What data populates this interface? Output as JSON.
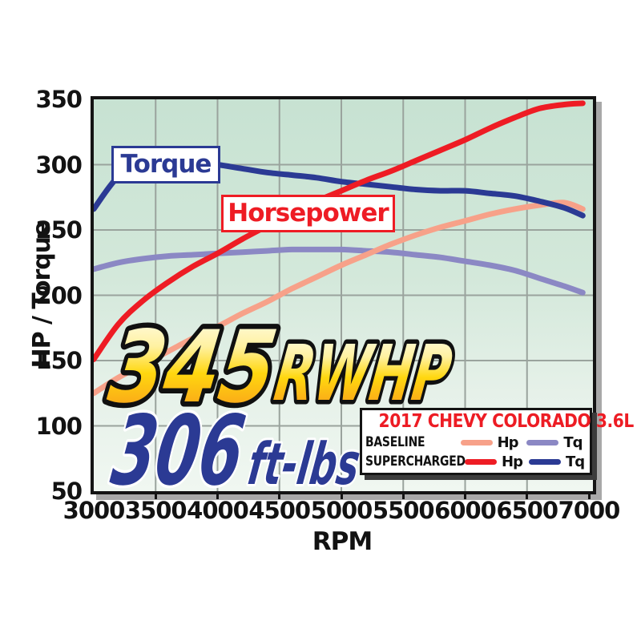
{
  "annotations": {
    "torque_label": "Torque",
    "horsepower_label": "Horsepower",
    "headline_value": "345",
    "headline_unit": "RWHP",
    "subheadline_value": "306",
    "subheadline_unit": "ft-lbs"
  },
  "legend": {
    "title": "2017 CHEVY COLORADO 3.6L",
    "rows": [
      {
        "label": "BASELINE",
        "entries": [
          {
            "name": "Hp",
            "color": "#f7a189"
          },
          {
            "name": "Tq",
            "color": "#8b88c4"
          }
        ]
      },
      {
        "label": "SUPERCHARGED",
        "entries": [
          {
            "name": "Hp",
            "color": "#ee1c24"
          },
          {
            "name": "Tq",
            "color": "#2b3a94"
          }
        ]
      }
    ]
  },
  "chart_data": {
    "type": "line",
    "title": "",
    "xlabel": "RPM",
    "ylabel": "HP / Torque",
    "xlim": [
      3000,
      7030
    ],
    "ylim": [
      50,
      350
    ],
    "grid": true,
    "legend_position": "bottom-right",
    "x_ticks": [
      3000,
      3500,
      4000,
      4500,
      5000,
      5500,
      6000,
      6500,
      7000
    ],
    "y_ticks": [
      350,
      300,
      250,
      200,
      150,
      100,
      50
    ],
    "x": [
      3000,
      3200,
      3400,
      3600,
      3800,
      4000,
      4200,
      4400,
      4600,
      4800,
      5000,
      5200,
      5400,
      5600,
      5800,
      6000,
      6200,
      6400,
      6600,
      6800,
      6950
    ],
    "series": [
      {
        "name": "Baseline Tq",
        "color": "#8b88c4",
        "values": [
          220,
          225,
          228,
          230,
          231,
          232,
          233,
          234,
          235,
          235,
          235,
          234,
          233,
          231,
          229,
          226,
          223,
          219,
          213,
          207,
          202
        ]
      },
      {
        "name": "Baseline Hp",
        "color": "#f7a189",
        "values": [
          125,
          137,
          147,
          157,
          167,
          176,
          186,
          195,
          205,
          214,
          223,
          231,
          239,
          246,
          252,
          257,
          262,
          266,
          269,
          271,
          266
        ]
      },
      {
        "name": "Supercharged Tq",
        "color": "#2b3a94",
        "values": [
          266,
          291,
          299,
          302,
          302,
          300,
          297,
          294,
          292,
          290,
          287,
          285,
          283,
          281,
          280,
          280,
          278,
          276,
          272,
          267,
          261
        ]
      },
      {
        "name": "Supercharged Hp",
        "color": "#ee1c24",
        "values": [
          151,
          178,
          196,
          210,
          222,
          232,
          243,
          253,
          263,
          272,
          280,
          288,
          295,
          303,
          311,
          319,
          328,
          336,
          343,
          346,
          347
        ]
      }
    ],
    "peak_callouts": {
      "hp": "345 RWHP",
      "torque": "306 ft-lbs"
    }
  },
  "colors": {
    "supercharged_hp": "#ee1c24",
    "supercharged_tq": "#2b3a94",
    "baseline_hp": "#f7a189",
    "baseline_tq": "#8b88c4",
    "plot_bg_top": "#c7e2d2",
    "plot_bg_bottom": "#f0f7f1",
    "gridline": "#9aa39d",
    "gold_top": "#fffef2",
    "gold_bottom": "#f5871f"
  }
}
